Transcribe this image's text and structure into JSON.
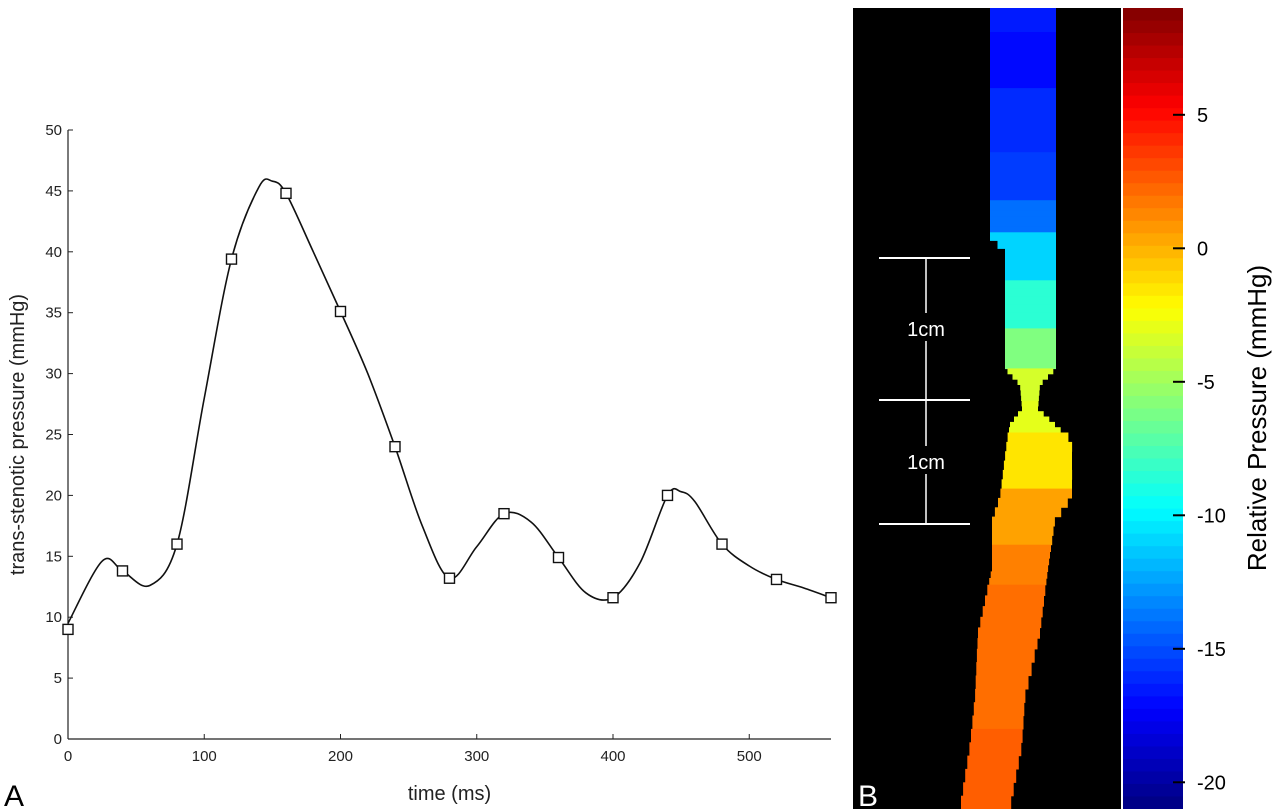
{
  "panel_labels": {
    "a": "A",
    "b": "B"
  },
  "chart_data": [
    {
      "type": "line",
      "panel": "A",
      "title": "",
      "xlabel": "time (ms)",
      "ylabel": "trans-stenotic pressure (mmHg)",
      "xlim": [
        0,
        560
      ],
      "ylim": [
        0,
        50
      ],
      "xticks": [
        0,
        100,
        200,
        300,
        400,
        500
      ],
      "yticks": [
        0,
        5,
        10,
        15,
        20,
        25,
        30,
        35,
        40,
        45,
        50
      ],
      "marker": "square",
      "grid": false,
      "series": [
        {
          "x": [
            0,
            40,
            80,
            120,
            160,
            200,
            240,
            280,
            320,
            360,
            400,
            440,
            480,
            520,
            560
          ],
          "y": [
            9,
            13.8,
            16,
            39.4,
            44.8,
            35.1,
            24,
            13.2,
            18.5,
            14.9,
            11.6,
            20,
            16,
            13.1,
            11.6
          ]
        }
      ],
      "curve": {
        "x": [
          0,
          25,
          40,
          60,
          80,
          100,
          120,
          140,
          150,
          160,
          180,
          200,
          220,
          240,
          260,
          280,
          300,
          320,
          340,
          360,
          380,
          400,
          420,
          440,
          450,
          460,
          480,
          500,
          520,
          540,
          560
        ],
        "y": [
          9.5,
          14.6,
          13.8,
          12.6,
          16,
          28,
          39.4,
          45.3,
          45.8,
          44.8,
          40,
          35.1,
          30,
          24,
          17.5,
          13.2,
          15.8,
          18.5,
          17.8,
          14.9,
          12,
          11.6,
          14.5,
          20,
          20.3,
          19.5,
          16,
          14.2,
          13.1,
          12.4,
          11.6
        ]
      }
    },
    {
      "type": "heatmap",
      "panel": "B",
      "colorbar": {
        "label": "Relative Pressure (mmHg)",
        "range": [
          -21,
          9
        ],
        "ticks": [
          5,
          0,
          -5,
          -10,
          -15,
          -20
        ],
        "colormap": "jet"
      },
      "scale_bars": [
        {
          "label": "1cm"
        },
        {
          "label": "1cm"
        }
      ],
      "vessel_segments": [
        {
          "y0": 0.0,
          "y1": 0.03,
          "value": -16.5
        },
        {
          "y0": 0.03,
          "y1": 0.1,
          "value": -17
        },
        {
          "y0": 0.1,
          "y1": 0.18,
          "value": -16
        },
        {
          "y0": 0.18,
          "y1": 0.24,
          "value": -15.5
        },
        {
          "y0": 0.24,
          "y1": 0.28,
          "value": -14
        },
        {
          "y0": 0.28,
          "y1": 0.34,
          "value": -11
        },
        {
          "y0": 0.34,
          "y1": 0.4,
          "value": -8.5
        },
        {
          "y0": 0.4,
          "y1": 0.45,
          "value": -6
        },
        {
          "y0": 0.45,
          "y1": 0.49,
          "value": -3.5
        },
        {
          "y0": 0.49,
          "y1": 0.53,
          "value": -3
        },
        {
          "y0": 0.53,
          "y1": 0.6,
          "value": -1.5
        },
        {
          "y0": 0.6,
          "y1": 0.67,
          "value": 0.5
        },
        {
          "y0": 0.67,
          "y1": 0.72,
          "value": 1.5
        },
        {
          "y0": 0.72,
          "y1": 0.8,
          "value": 2
        },
        {
          "y0": 0.8,
          "y1": 0.9,
          "value": 2
        },
        {
          "y0": 0.9,
          "y1": 1.0,
          "value": 2.5
        }
      ]
    }
  ]
}
